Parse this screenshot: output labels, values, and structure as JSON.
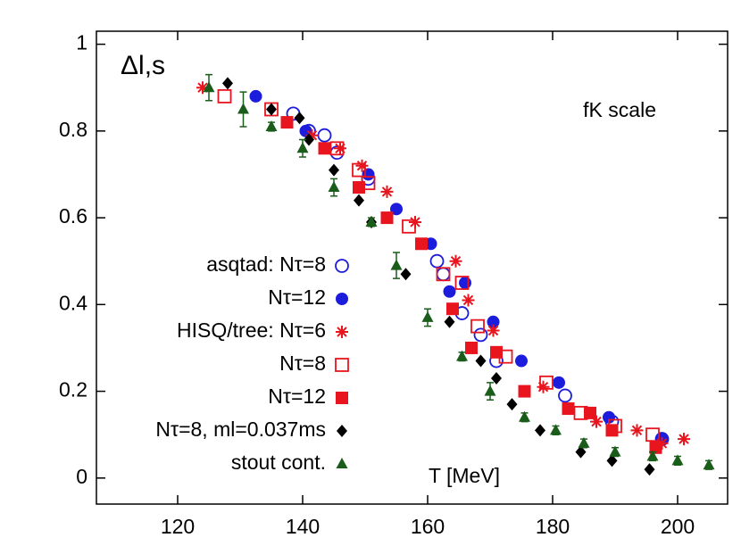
{
  "chart_data": {
    "type": "scatter",
    "annotations": [
      "Δl,s",
      "fK scale"
    ],
    "xlabel": "T [MeV]",
    "xlim": [
      107,
      208
    ],
    "ylim": [
      -0.06,
      1.03
    ],
    "xticks": [
      120,
      140,
      160,
      180,
      200
    ],
    "yticks": [
      0,
      0.2,
      0.4,
      0.6,
      0.8,
      1
    ],
    "grid": false,
    "series": [
      {
        "name": "asqtad: Nτ=8",
        "color": "#1c1cdc",
        "marker": "open-circle",
        "x": [
          138.5,
          141,
          143.5,
          145.5,
          150.5,
          161.5,
          162.5,
          165.5,
          168.5,
          171,
          182,
          189.5,
          197.5
        ],
        "values": [
          0.84,
          0.8,
          0.79,
          0.75,
          0.69,
          0.5,
          0.47,
          0.38,
          0.33,
          0.27,
          0.19,
          0.13,
          0.09
        ]
      },
      {
        "name": "Nτ=12",
        "color": "#1c1cdc",
        "marker": "circle",
        "x": [
          132.5,
          140.5,
          150.5,
          155,
          160.5,
          163.5,
          166,
          170.5,
          175,
          181,
          189,
          197.5
        ],
        "values": [
          0.88,
          0.8,
          0.7,
          0.62,
          0.54,
          0.43,
          0.45,
          0.36,
          0.27,
          0.22,
          0.14,
          0.09
        ]
      },
      {
        "name": "HISQ/tree: Nτ=6",
        "color": "#e8141e",
        "marker": "star",
        "x": [
          124,
          141.5,
          146,
          149.5,
          153.5,
          158,
          164.5,
          166.5,
          170.5,
          178.5,
          187,
          193.5,
          197.5,
          201
        ],
        "values": [
          0.9,
          0.79,
          0.76,
          0.72,
          0.66,
          0.59,
          0.5,
          0.41,
          0.34,
          0.21,
          0.13,
          0.11,
          0.08,
          0.09
        ]
      },
      {
        "name": "Nτ=8",
        "color": "#e8141e",
        "marker": "open-square",
        "x": [
          127.5,
          135,
          145.5,
          149,
          150.5,
          157,
          162.5,
          165.5,
          168,
          172.5,
          179,
          184.5,
          190,
          196
        ],
        "values": [
          0.88,
          0.85,
          0.76,
          0.71,
          0.68,
          0.58,
          0.47,
          0.45,
          0.35,
          0.28,
          0.22,
          0.15,
          0.12,
          0.1
        ]
      },
      {
        "name": "Nτ=12",
        "color": "#e8141e",
        "marker": "square",
        "x": [
          137.5,
          143.5,
          149,
          153.5,
          159,
          164,
          167,
          171,
          175.5,
          182.5,
          186,
          189.5,
          196.5
        ],
        "values": [
          0.82,
          0.76,
          0.67,
          0.6,
          0.54,
          0.39,
          0.3,
          0.29,
          0.2,
          0.16,
          0.15,
          0.11,
          0.07
        ]
      },
      {
        "name": "Nτ=8, ml=0.037ms",
        "color": "#000000",
        "marker": "diamond",
        "x": [
          128,
          135,
          139.5,
          141,
          145,
          149,
          151,
          156.5,
          163.5,
          168.5,
          171,
          173.5,
          178,
          184.5,
          189.5,
          195.5
        ],
        "values": [
          0.91,
          0.85,
          0.83,
          0.78,
          0.71,
          0.64,
          0.59,
          0.47,
          0.36,
          0.27,
          0.23,
          0.17,
          0.11,
          0.06,
          0.04,
          0.02
        ]
      },
      {
        "name": "stout cont.",
        "color": "#1a5c1a",
        "marker": "triangle",
        "x": [
          125,
          130.5,
          135,
          140,
          145,
          151,
          155,
          160,
          165.5,
          170,
          175.5,
          180.5,
          185,
          190,
          196,
          200,
          205
        ],
        "values": [
          0.9,
          0.85,
          0.81,
          0.76,
          0.67,
          0.59,
          0.49,
          0.37,
          0.28,
          0.2,
          0.14,
          0.11,
          0.08,
          0.06,
          0.05,
          0.04,
          0.03
        ],
        "errors": [
          0.03,
          0.04,
          0.01,
          0.02,
          0.02,
          0.01,
          0.03,
          0.02,
          0.01,
          0.02,
          0.01,
          0.01,
          0.01,
          0.01,
          0.01,
          0.01,
          0.01
        ]
      }
    ]
  }
}
